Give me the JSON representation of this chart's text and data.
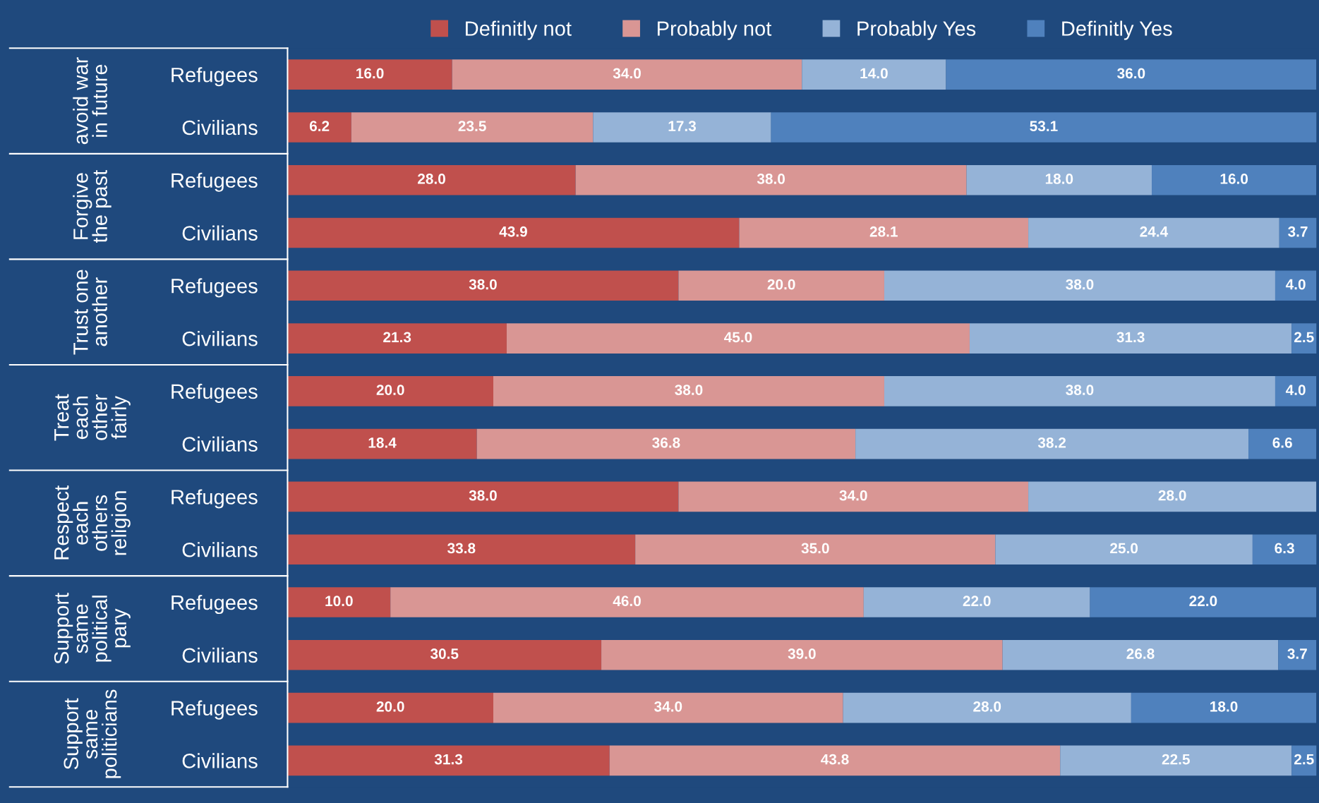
{
  "chart_data": {
    "type": "bar",
    "orientation": "horizontal",
    "stacked": true,
    "legend": "top",
    "grid": false,
    "tick_labels": "y",
    "categories": [
      "Refugees",
      "Civilians",
      "Refugees",
      "Civilians",
      "Refugees",
      "Civilians",
      "Refugees",
      "Civilians",
      "Refugees",
      "Civilians",
      "Refugees",
      "Civilians",
      "Refugees",
      "Civilians"
    ],
    "xlim": [
      0,
      100
    ],
    "annotations": [
      "avoid war\nin future",
      "Forgive\nthe past",
      "Trust one\nanother",
      "Treat\neach\nother\nfairly",
      "Respect\neach\nothers\nreligion",
      "Support\nsame\npolitical\npary",
      "Support\nsame\npoliticians"
    ],
    "series": [
      {
        "name": "Definitly not",
        "color": "#c0504d",
        "values": [
          16.0,
          6.2,
          28.0,
          43.9,
          38.0,
          21.3,
          20.0,
          18.4,
          38.0,
          33.8,
          10.0,
          30.5,
          20.0,
          31.3
        ],
        "value_labels": [
          "16.0",
          "6.2",
          "28.0",
          "43.9",
          "38.0",
          "21.3",
          "20.0",
          "18.4",
          "38.0",
          "33.8",
          "10.0",
          "30.5",
          "20.0",
          "31.3"
        ]
      },
      {
        "name": "Probably not",
        "color": "#d99694",
        "values": [
          34.0,
          23.5,
          38.0,
          28.1,
          20.0,
          45.0,
          38.0,
          36.8,
          34.0,
          35.0,
          46.0,
          39.0,
          34.0,
          43.8
        ],
        "value_labels": [
          "34.0",
          "23.5",
          "38.0",
          "28.1",
          "20.0",
          "45.0",
          "38.0",
          "36.8",
          "34.0",
          "35.0",
          "46.0",
          "39.0",
          "34.0",
          "43.8"
        ]
      },
      {
        "name": "Probably Yes",
        "color": "#95b3d7",
        "values": [
          14.0,
          17.3,
          18.0,
          24.4,
          38.0,
          31.3,
          38.0,
          38.2,
          28.0,
          25.0,
          22.0,
          26.8,
          28.0,
          22.5
        ],
        "value_labels": [
          "14.0",
          "17.3",
          "18.0",
          "24.4",
          "38.0",
          "31.3",
          "38.0",
          "38.2",
          "28.0",
          "25.0",
          "22.0",
          "26.8",
          "28.0",
          "22.5"
        ]
      },
      {
        "name": "Definitly Yes",
        "color": "#4f81bd",
        "values": [
          36.0,
          53.1,
          16.0,
          3.7,
          4.0,
          2.5,
          4.0,
          6.6,
          null,
          6.3,
          22.0,
          3.7,
          18.0,
          2.5
        ],
        "value_labels": [
          "36.0",
          "53.1",
          "16.0",
          "3.7",
          "4.0",
          "2.5",
          "4.0",
          "6.6",
          null,
          "6.3",
          "22.0",
          "3.7",
          "18.0",
          "2.5"
        ]
      }
    ]
  }
}
